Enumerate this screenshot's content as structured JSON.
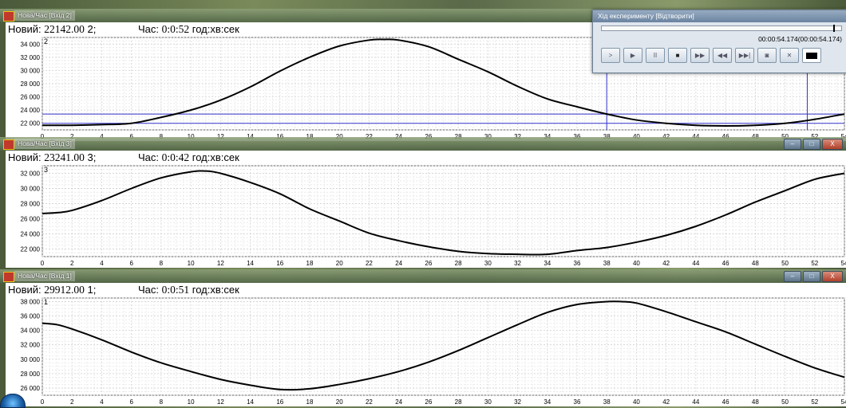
{
  "windows": [
    {
      "title": "Нова/Час [Вхід 2]",
      "header": {
        "label": "Новий:",
        "value": "22142.00",
        "channel": "2;",
        "time_label": "Час:",
        "time_value": "0:0:52",
        "units": "год:хв:сек"
      },
      "channel_tag": "2",
      "show_controls": false
    },
    {
      "title": "Нова/Час [Вхід 3]",
      "header": {
        "label": "Новий:",
        "value": "23241.00",
        "channel": "3;",
        "time_label": "Час:",
        "time_value": "0:0:42",
        "units": "год:хв:сек"
      },
      "channel_tag": "3",
      "show_controls": true
    },
    {
      "title": "Нова/Час [Вхід 1]",
      "header": {
        "label": "Новий:",
        "value": "29912.00",
        "channel": "1;",
        "time_label": "Час:",
        "time_value": "0:0:51",
        "units": "год:хв:сек"
      },
      "channel_tag": "1",
      "show_controls": true
    }
  ],
  "window_controls": {
    "minimize": "–",
    "maximize": "□",
    "close": "X"
  },
  "player": {
    "title": "Хід експерименту [Відтворити]",
    "time_readout": "00:00:54.174(00:00:54.174)",
    "position_fraction": 1.0,
    "buttons": [
      {
        "name": "play-slow-button",
        "glyph": ">"
      },
      {
        "name": "play-button",
        "glyph": "▶"
      },
      {
        "name": "pause-button",
        "glyph": "II"
      },
      {
        "name": "stop-button",
        "glyph": "■"
      },
      {
        "name": "fast-forward-button",
        "glyph": "▶▶"
      },
      {
        "name": "rewind-button",
        "glyph": "◀◀"
      },
      {
        "name": "step-button",
        "glyph": "▶▶|"
      },
      {
        "name": "record-button",
        "glyph": "◙"
      },
      {
        "name": "cancel-button",
        "glyph": "✕"
      },
      {
        "name": "display-button",
        "glyph": ""
      }
    ]
  },
  "chart_data": [
    {
      "type": "line",
      "title": "",
      "xlim": [
        0,
        54
      ],
      "ylim": [
        21000,
        35000
      ],
      "x_ticks": [
        0,
        2,
        4,
        6,
        8,
        10,
        12,
        14,
        16,
        18,
        20,
        22,
        24,
        26,
        28,
        30,
        32,
        34,
        36,
        38,
        40,
        42,
        44,
        46,
        48,
        50,
        52,
        54
      ],
      "y_ticks": [
        22000,
        24000,
        26000,
        28000,
        30000,
        32000,
        34000
      ],
      "y_tick_labels": [
        "22 000",
        "24 000",
        "26 000",
        "28 000",
        "30 000",
        "32 000",
        "34 000"
      ],
      "series_color": "#000000",
      "x": [
        0,
        2,
        4,
        6,
        8,
        10,
        12,
        14,
        16,
        18,
        20,
        22,
        23,
        24,
        26,
        28,
        30,
        32,
        34,
        36,
        38,
        40,
        42,
        44,
        46,
        48,
        50,
        52,
        54
      ],
      "y": [
        21700,
        21700,
        21800,
        22000,
        22900,
        24000,
        25500,
        27500,
        29900,
        32000,
        33700,
        34600,
        34700,
        34600,
        33600,
        31700,
        29800,
        27600,
        25700,
        24500,
        23400,
        22500,
        22000,
        21700,
        21600,
        21700,
        22000,
        22600,
        23400
      ],
      "cursor_lines": {
        "vertical_x": [
          38,
          51.5
        ],
        "horizontal_y": [
          23400,
          22000
        ],
        "color": "#3333cc"
      }
    },
    {
      "type": "line",
      "title": "",
      "xlim": [
        0,
        54
      ],
      "ylim": [
        21000,
        33000
      ],
      "x_ticks": [
        0,
        2,
        4,
        6,
        8,
        10,
        12,
        14,
        16,
        18,
        20,
        22,
        24,
        26,
        28,
        30,
        32,
        34,
        36,
        38,
        40,
        42,
        44,
        46,
        48,
        50,
        52,
        54
      ],
      "y_ticks": [
        22000,
        24000,
        26000,
        28000,
        30000,
        32000
      ],
      "y_tick_labels": [
        "22 000",
        "24 000",
        "26 000",
        "28 000",
        "30 000",
        "32 000"
      ],
      "series_color": "#000000",
      "x": [
        0,
        1,
        2,
        4,
        6,
        8,
        10,
        11,
        12,
        14,
        16,
        18,
        20,
        22,
        24,
        26,
        28,
        30,
        32,
        34,
        36,
        38,
        40,
        42,
        44,
        46,
        48,
        50,
        52,
        54
      ],
      "y": [
        26700,
        26800,
        27100,
        28400,
        30000,
        31400,
        32200,
        32300,
        32000,
        30800,
        29300,
        27300,
        25700,
        24100,
        23100,
        22300,
        21700,
        21400,
        21300,
        21300,
        21800,
        22200,
        22900,
        23800,
        25000,
        26500,
        28200,
        29700,
        31200,
        32000
      ]
    },
    {
      "type": "line",
      "title": "",
      "xlim": [
        0,
        54
      ],
      "ylim": [
        25000,
        38500
      ],
      "x_ticks": [
        0,
        2,
        4,
        6,
        8,
        10,
        12,
        14,
        16,
        18,
        20,
        22,
        24,
        26,
        28,
        30,
        32,
        34,
        36,
        38,
        40,
        42,
        44,
        46,
        48,
        50,
        52,
        54
      ],
      "y_ticks": [
        26000,
        28000,
        30000,
        32000,
        34000,
        36000,
        38000
      ],
      "y_tick_labels": [
        "26 000",
        "28 000",
        "30 000",
        "32 000",
        "34 000",
        "36 000",
        "38 000"
      ],
      "series_color": "#000000",
      "x": [
        0,
        1,
        2,
        4,
        6,
        8,
        10,
        12,
        14,
        16,
        18,
        20,
        22,
        24,
        26,
        28,
        30,
        32,
        34,
        36,
        38,
        39,
        40,
        42,
        44,
        46,
        48,
        50,
        52,
        54
      ],
      "y": [
        35000,
        34800,
        34200,
        32700,
        31000,
        29500,
        28300,
        27200,
        26400,
        25800,
        25900,
        26500,
        27300,
        28300,
        29600,
        31200,
        33000,
        34800,
        36500,
        37600,
        38000,
        38000,
        37800,
        36600,
        35200,
        33800,
        32100,
        30400,
        28800,
        27500
      ]
    }
  ]
}
